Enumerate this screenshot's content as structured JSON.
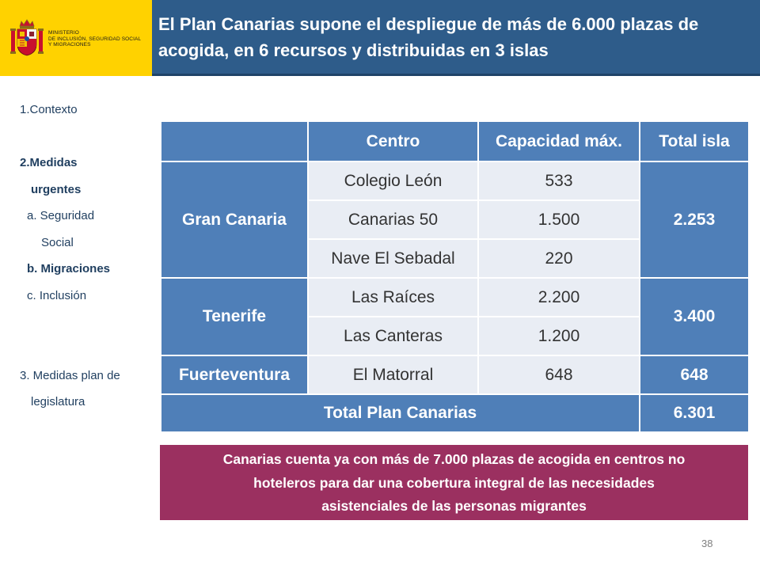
{
  "ministry": {
    "line1": "Ministerio",
    "line2": "de Inclusión, Seguridad Social",
    "line3": "y Migraciones"
  },
  "title": {
    "line1": "El Plan Canarias supone el despliegue de más de 6.000 plazas de",
    "line2": "acogida, en 6 recursos y distribuidas en 3 islas"
  },
  "sidebar": {
    "contexto": "1.Contexto",
    "medidas_line1": "2.Medidas",
    "medidas_line2": "urgentes",
    "seguridad_line1": "a. Seguridad",
    "seguridad_line2": "Social",
    "migraciones": "b. Migraciones",
    "inclusion": "c.  Inclusión",
    "plan_line1": "3. Medidas plan de",
    "plan_line2": "legislatura"
  },
  "table": {
    "headers": [
      "",
      "Centro",
      "Capacidad máx.",
      "Total isla"
    ],
    "islands": [
      {
        "name": "Gran Canaria",
        "total": "2.253",
        "centers": [
          {
            "name": "Colegio León",
            "capacity": "533"
          },
          {
            "name": "Canarias 50",
            "capacity": "1.500"
          },
          {
            "name": "Nave El Sebadal",
            "capacity": "220"
          }
        ]
      },
      {
        "name": "Tenerife",
        "total": "3.400",
        "centers": [
          {
            "name": "Las Raíces",
            "capacity": "2.200"
          },
          {
            "name": "Las Canteras",
            "capacity": "1.200"
          }
        ]
      },
      {
        "name": "Fuerteventura",
        "total": "648",
        "centers": [
          {
            "name": "El Matorral",
            "capacity": "648"
          }
        ]
      }
    ],
    "footer_label": "Total Plan Canarias",
    "footer_total": "6.301"
  },
  "note": {
    "line1": "Canarias cuenta ya con más de 7.000 plazas de acogida en centros no",
    "line2": "hoteleros para dar una cobertura integral de las necesidades",
    "line3": "asistenciales de las personas migrantes"
  },
  "page_number": "38",
  "colors": {
    "logo_yellow": "#FFD200",
    "title_blue": "#2E5C8A",
    "table_blue": "#4F7FB8",
    "table_light": "#E9EDF4",
    "note_magenta": "#9B3060",
    "sidebar_text": "#1F3E5F"
  }
}
